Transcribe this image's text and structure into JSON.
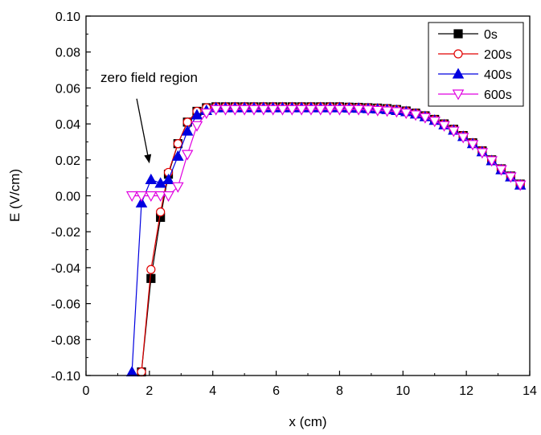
{
  "chart_data": {
    "type": "line",
    "title": "",
    "xlabel": "x (cm)",
    "ylabel": "E (V/cm)",
    "xlim": [
      0,
      14
    ],
    "ylim": [
      -0.1,
      0.1
    ],
    "x_ticks": [
      0,
      2,
      4,
      6,
      8,
      10,
      12,
      14
    ],
    "y_ticks": [
      -0.1,
      -0.08,
      -0.06,
      -0.04,
      -0.02,
      0.0,
      0.02,
      0.04,
      0.06,
      0.08,
      0.1
    ],
    "x_tick_labels": [
      "0",
      "2",
      "4",
      "6",
      "8",
      "10",
      "12",
      "14"
    ],
    "y_tick_labels": [
      "-0.10",
      "-0.08",
      "-0.06",
      "-0.04",
      "-0.02",
      "0.00",
      "0.02",
      "0.04",
      "0.06",
      "0.08",
      "0.10"
    ],
    "grid": false,
    "legend_position": "top-right",
    "annotation": {
      "text": "zero field region",
      "arrow_from": [
        1.6,
        0.054
      ],
      "arrow_to": [
        2.0,
        0.018
      ]
    },
    "series": [
      {
        "name": "0s",
        "color": "#000000",
        "marker": "square",
        "filled": true,
        "x": [
          1.75,
          2.05,
          2.35,
          2.6,
          2.9,
          3.2,
          3.5,
          3.8,
          4.1,
          4.4,
          4.7,
          5.0,
          5.3,
          5.6,
          5.9,
          6.2,
          6.5,
          6.8,
          7.1,
          7.4,
          7.7,
          8.0,
          8.3,
          8.6,
          8.9,
          9.2,
          9.5,
          9.8,
          10.1,
          10.4,
          10.7,
          11.0,
          11.3,
          11.6,
          11.9,
          12.2,
          12.5,
          12.8,
          13.1,
          13.4,
          13.7
        ],
        "y": [
          -0.098,
          -0.046,
          -0.012,
          0.012,
          0.029,
          0.041,
          0.047,
          0.049,
          0.0495,
          0.0495,
          0.0495,
          0.0495,
          0.0495,
          0.0495,
          0.0495,
          0.0495,
          0.0495,
          0.0495,
          0.0495,
          0.0495,
          0.0495,
          0.0495,
          0.0493,
          0.0492,
          0.049,
          0.0488,
          0.0485,
          0.048,
          0.0472,
          0.046,
          0.0445,
          0.0425,
          0.04,
          0.037,
          0.0335,
          0.0295,
          0.025,
          0.02,
          0.015,
          0.011,
          0.0065
        ]
      },
      {
        "name": "200s",
        "color": "#e00000",
        "marker": "circle",
        "filled": false,
        "x": [
          1.75,
          2.05,
          2.35,
          2.6,
          2.9,
          3.2,
          3.5,
          3.8,
          4.1,
          4.4,
          4.7,
          5.0,
          5.3,
          5.6,
          5.9,
          6.2,
          6.5,
          6.8,
          7.1,
          7.4,
          7.7,
          8.0,
          8.3,
          8.6,
          8.9,
          9.2,
          9.5,
          9.8,
          10.1,
          10.4,
          10.7,
          11.0,
          11.3,
          11.6,
          11.9,
          12.2,
          12.5,
          12.8,
          13.1,
          13.4,
          13.7
        ],
        "y": [
          -0.098,
          -0.041,
          -0.009,
          0.013,
          0.029,
          0.041,
          0.047,
          0.049,
          0.0495,
          0.0495,
          0.0495,
          0.0495,
          0.0495,
          0.0495,
          0.0495,
          0.0495,
          0.0495,
          0.0495,
          0.0495,
          0.0495,
          0.0495,
          0.0495,
          0.0493,
          0.0492,
          0.049,
          0.0488,
          0.0485,
          0.048,
          0.0472,
          0.046,
          0.0445,
          0.0425,
          0.04,
          0.037,
          0.0335,
          0.0295,
          0.025,
          0.02,
          0.015,
          0.011,
          0.0065
        ]
      },
      {
        "name": "400s",
        "color": "#0000e0",
        "marker": "triangle-up",
        "filled": true,
        "x": [
          1.45,
          1.75,
          2.05,
          2.35,
          2.6,
          2.9,
          3.2,
          3.5,
          3.8,
          4.1,
          4.4,
          4.7,
          5.0,
          5.3,
          5.6,
          5.9,
          6.2,
          6.5,
          6.8,
          7.1,
          7.4,
          7.7,
          8.0,
          8.3,
          8.6,
          8.9,
          9.2,
          9.5,
          9.8,
          10.1,
          10.4,
          10.7,
          11.0,
          11.3,
          11.6,
          11.9,
          12.2,
          12.5,
          12.8,
          13.1,
          13.4,
          13.7
        ],
        "y": [
          -0.098,
          -0.004,
          0.009,
          0.007,
          0.009,
          0.022,
          0.036,
          0.045,
          0.0475,
          0.049,
          0.049,
          0.049,
          0.049,
          0.049,
          0.049,
          0.049,
          0.049,
          0.049,
          0.049,
          0.049,
          0.049,
          0.049,
          0.049,
          0.0488,
          0.0487,
          0.0485,
          0.0483,
          0.048,
          0.0475,
          0.0468,
          0.0455,
          0.044,
          0.042,
          0.0395,
          0.0365,
          0.033,
          0.029,
          0.0245,
          0.0195,
          0.0145,
          0.0105,
          0.006
        ]
      },
      {
        "name": "600s",
        "color": "#e000e0",
        "marker": "triangle-down",
        "filled": false,
        "x": [
          1.45,
          1.75,
          2.05,
          2.35,
          2.6,
          2.9,
          3.2,
          3.5,
          3.8,
          4.1,
          4.4,
          4.7,
          5.0,
          5.3,
          5.6,
          5.9,
          6.2,
          6.5,
          6.8,
          7.1,
          7.4,
          7.7,
          8.0,
          8.3,
          8.6,
          8.9,
          9.2,
          9.5,
          9.8,
          10.1,
          10.4,
          10.7,
          11.0,
          11.3,
          11.6,
          11.9,
          12.2,
          12.5,
          12.8,
          13.1,
          13.4,
          13.7
        ],
        "y": [
          0.0,
          0.0,
          0.0,
          0.0,
          0.0,
          0.005,
          0.023,
          0.039,
          0.046,
          0.048,
          0.048,
          0.048,
          0.048,
          0.048,
          0.048,
          0.048,
          0.048,
          0.048,
          0.048,
          0.048,
          0.048,
          0.048,
          0.048,
          0.048,
          0.048,
          0.0478,
          0.0475,
          0.0472,
          0.0468,
          0.046,
          0.045,
          0.0435,
          0.0415,
          0.039,
          0.036,
          0.0325,
          0.0285,
          0.024,
          0.0195,
          0.0145,
          0.0105,
          0.006
        ]
      }
    ]
  }
}
